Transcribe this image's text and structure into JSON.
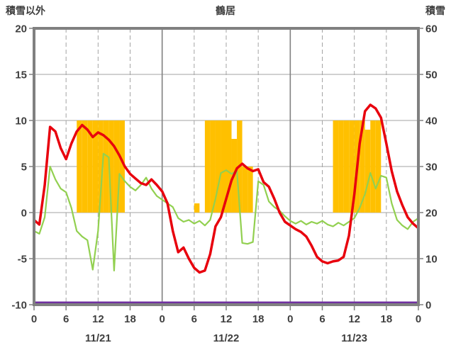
{
  "header": {
    "left_axis_label": "積雪以外",
    "title": "鶴居",
    "right_axis_label": "積雪"
  },
  "colors": {
    "border": "#808080",
    "grid": "#a3a3a3",
    "day_line": "#808080",
    "text": "#3f3f3f",
    "bar": "#ffc000",
    "temperature": "#e8000d",
    "green_series": "#92d050",
    "snow_depth": "#7030a0",
    "background": "#ffffff"
  },
  "chart_data": {
    "type": "bar",
    "subtype": "combo-line-bar",
    "title": "鶴居",
    "left_axis": {
      "label": "積雪以外",
      "min": -10,
      "max": 20,
      "ticks": [
        20,
        15,
        10,
        5,
        0,
        -5,
        -10
      ]
    },
    "right_axis": {
      "label": "積雪",
      "min": 0,
      "max": 60,
      "ticks": [
        60,
        50,
        40,
        30,
        20,
        10,
        0
      ]
    },
    "x_axis": {
      "min_hour": 0,
      "max_hour": 72,
      "tick_hours": [
        0,
        6,
        12,
        18,
        24,
        30,
        36,
        42,
        48,
        54,
        60,
        66,
        72
      ],
      "tick_labels": [
        "0",
        "6",
        "12",
        "18",
        "0",
        "6",
        "12",
        "18",
        "0",
        "6",
        "12",
        "18",
        "0"
      ],
      "day_labels": [
        "11/21",
        "11/22",
        "11/23"
      ],
      "day_label_center_hours": [
        12,
        36,
        60
      ]
    },
    "grid": {
      "y_values": [
        15,
        10,
        5,
        0,
        -5
      ],
      "x_dashed_hours": [
        6,
        12,
        18,
        30,
        36,
        42,
        54,
        60,
        66
      ],
      "x_solid_hours": [
        24,
        48
      ]
    },
    "series": [
      {
        "id": "sunshine-bars",
        "type": "bar",
        "axis": "left",
        "color": "#ffc000",
        "points": [
          [
            8,
            10
          ],
          [
            9,
            10
          ],
          [
            10,
            10
          ],
          [
            11,
            10
          ],
          [
            12,
            10
          ],
          [
            13,
            10
          ],
          [
            14,
            10
          ],
          [
            15,
            10
          ],
          [
            16,
            10
          ],
          [
            30,
            1
          ],
          [
            32,
            10
          ],
          [
            33,
            10
          ],
          [
            34,
            10
          ],
          [
            35,
            10
          ],
          [
            36,
            10
          ],
          [
            37,
            8
          ],
          [
            38,
            10
          ],
          [
            39,
            5
          ],
          [
            40,
            5
          ],
          [
            56,
            10
          ],
          [
            57,
            10
          ],
          [
            58,
            10
          ],
          [
            59,
            10
          ],
          [
            60,
            10
          ],
          [
            61,
            10
          ],
          [
            62,
            9
          ],
          [
            63,
            10
          ],
          [
            64,
            10
          ]
        ]
      },
      {
        "id": "snow-depth",
        "type": "constant-line",
        "axis": "right",
        "color": "#7030a0",
        "width": 2.5,
        "value": 0
      },
      {
        "id": "green-series",
        "type": "line",
        "axis": "left",
        "color": "#92d050",
        "width": 2.2,
        "start_hour": 0,
        "values": [
          -2.0,
          -2.3,
          -0.5,
          5.0,
          3.6,
          2.6,
          2.2,
          0.5,
          -2.0,
          -2.6,
          -3.0,
          -6.2,
          -2.0,
          6.4,
          6.0,
          -6.3,
          4.2,
          3.4,
          2.8,
          2.4,
          3.0,
          3.8,
          2.6,
          1.8,
          1.4,
          1.0,
          0.6,
          -0.6,
          -1.0,
          -0.8,
          -1.2,
          -0.9,
          -1.4,
          -0.8,
          1.5,
          4.3,
          4.6,
          4.2,
          4.5,
          -3.3,
          -3.4,
          -3.2,
          3.4,
          3.0,
          1.2,
          0.6,
          0.2,
          -0.4,
          -0.9,
          -1.2,
          -0.9,
          -1.3,
          -1.0,
          -1.2,
          -0.9,
          -1.3,
          -1.5,
          -1.1,
          -1.4,
          -1.0,
          -0.6,
          0.5,
          2.0,
          4.3,
          2.6,
          4.0,
          3.8,
          1.0,
          -0.8,
          -1.4,
          -1.8,
          -1.0,
          -0.6
        ]
      },
      {
        "id": "temperature",
        "type": "line",
        "axis": "left",
        "color": "#e8000d",
        "width": 3.5,
        "start_hour": 0,
        "values": [
          -0.8,
          -1.3,
          3.0,
          9.3,
          8.8,
          7.0,
          5.8,
          7.5,
          8.8,
          9.5,
          9.0,
          8.2,
          8.7,
          8.4,
          7.9,
          7.2,
          6.2,
          5.0,
          4.2,
          3.7,
          3.2,
          3.0,
          3.6,
          3.0,
          2.3,
          1.0,
          -2.0,
          -4.3,
          -3.8,
          -5.0,
          -6.0,
          -6.5,
          -6.3,
          -4.5,
          -1.5,
          -0.5,
          1.5,
          3.5,
          4.8,
          5.3,
          4.8,
          4.5,
          4.7,
          3.3,
          2.8,
          1.5,
          0.0,
          -1.0,
          -1.4,
          -1.8,
          -2.1,
          -2.6,
          -3.6,
          -4.8,
          -5.3,
          -5.5,
          -5.3,
          -5.2,
          -4.8,
          -2.5,
          2.0,
          7.5,
          11.0,
          11.7,
          11.3,
          10.3,
          7.5,
          4.5,
          2.3,
          0.8,
          -0.5,
          -1.2,
          -1.7
        ]
      }
    ]
  }
}
